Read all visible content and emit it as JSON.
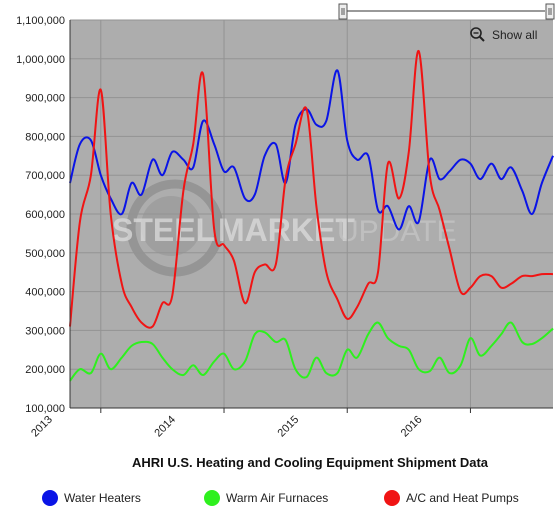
{
  "controls": {
    "show_all_label": "Show all"
  },
  "watermark": {
    "word1": "STEEL",
    "word2": "MARKET",
    "word3": "UPDATE"
  },
  "chart_data": {
    "type": "line",
    "title": "AHRI U.S. Heating and Cooling Equipment Shipment Data",
    "xlabel": "",
    "ylabel": "",
    "ylim": [
      100000,
      1100000
    ],
    "yticks": [
      100000,
      200000,
      300000,
      400000,
      500000,
      600000,
      700000,
      800000,
      900000,
      1000000,
      1100000
    ],
    "ytick_labels": [
      "100,000",
      "200,000",
      "300,000",
      "400,000",
      "500,000",
      "600,000",
      "700,000",
      "800,000",
      "900,000",
      "1,000,000",
      "1,100,000"
    ],
    "xlim": [
      2012.75,
      2016.67
    ],
    "xticks": [
      2013,
      2014,
      2015,
      2016
    ],
    "xtick_labels": [
      "2013",
      "2014",
      "2015",
      "2016"
    ],
    "grid": true,
    "legend_position": "bottom",
    "background": "#adadad",
    "series": [
      {
        "name": "Water Heaters",
        "color": "#0a14e6",
        "x": [
          2012.75,
          2012.83,
          2012.92,
          2013.0,
          2013.08,
          2013.17,
          2013.25,
          2013.33,
          2013.42,
          2013.5,
          2013.58,
          2013.67,
          2013.75,
          2013.83,
          2013.92,
          2014.0,
          2014.08,
          2014.17,
          2014.25,
          2014.33,
          2014.42,
          2014.5,
          2014.58,
          2014.67,
          2014.75,
          2014.83,
          2014.92,
          2015.0,
          2015.08,
          2015.17,
          2015.25,
          2015.33,
          2015.42,
          2015.5,
          2015.58,
          2015.67,
          2015.75,
          2015.83,
          2015.92,
          2016.0,
          2016.08,
          2016.17,
          2016.25,
          2016.33,
          2016.42,
          2016.5,
          2016.58,
          2016.67
        ],
        "values": [
          680000,
          780000,
          790000,
          700000,
          640000,
          600000,
          680000,
          650000,
          740000,
          700000,
          760000,
          740000,
          720000,
          840000,
          780000,
          710000,
          720000,
          640000,
          650000,
          750000,
          780000,
          680000,
          830000,
          870000,
          830000,
          840000,
          970000,
          790000,
          740000,
          750000,
          610000,
          620000,
          560000,
          620000,
          580000,
          740000,
          690000,
          710000,
          740000,
          730000,
          690000,
          730000,
          690000,
          720000,
          660000,
          600000,
          680000,
          750000
        ]
      },
      {
        "name": "Warm Air Furnaces",
        "color": "#2ef01e",
        "x": [
          2012.75,
          2012.83,
          2012.92,
          2013.0,
          2013.08,
          2013.17,
          2013.25,
          2013.33,
          2013.42,
          2013.5,
          2013.58,
          2013.67,
          2013.75,
          2013.83,
          2013.92,
          2014.0,
          2014.08,
          2014.17,
          2014.25,
          2014.33,
          2014.42,
          2014.5,
          2014.58,
          2014.67,
          2014.75,
          2014.83,
          2014.92,
          2015.0,
          2015.08,
          2015.17,
          2015.25,
          2015.33,
          2015.42,
          2015.5,
          2015.58,
          2015.67,
          2015.75,
          2015.83,
          2015.92,
          2016.0,
          2016.08,
          2016.17,
          2016.25,
          2016.33,
          2016.42,
          2016.5,
          2016.58,
          2016.67
        ],
        "values": [
          170000,
          200000,
          190000,
          240000,
          200000,
          230000,
          260000,
          270000,
          265000,
          230000,
          200000,
          185000,
          210000,
          185000,
          220000,
          240000,
          200000,
          220000,
          290000,
          295000,
          270000,
          275000,
          200000,
          180000,
          230000,
          190000,
          190000,
          250000,
          230000,
          290000,
          320000,
          280000,
          260000,
          250000,
          200000,
          195000,
          230000,
          190000,
          210000,
          280000,
          235000,
          260000,
          290000,
          320000,
          270000,
          265000,
          280000,
          305000
        ]
      },
      {
        "name": "A/C and Heat Pumps",
        "color": "#f01414",
        "x": [
          2012.75,
          2012.83,
          2012.92,
          2013.0,
          2013.08,
          2013.17,
          2013.25,
          2013.33,
          2013.42,
          2013.5,
          2013.58,
          2013.67,
          2013.75,
          2013.83,
          2013.92,
          2014.0,
          2014.08,
          2014.17,
          2014.25,
          2014.33,
          2014.42,
          2014.5,
          2014.58,
          2014.67,
          2014.75,
          2014.83,
          2014.92,
          2015.0,
          2015.08,
          2015.17,
          2015.25,
          2015.33,
          2015.42,
          2015.5,
          2015.58,
          2015.67,
          2015.75,
          2015.83,
          2015.92,
          2016.0,
          2016.08,
          2016.17,
          2016.25,
          2016.33,
          2016.42,
          2016.5,
          2016.58,
          2016.67
        ],
        "values": [
          310000,
          580000,
          700000,
          920000,
          600000,
          420000,
          360000,
          320000,
          310000,
          370000,
          390000,
          660000,
          780000,
          960000,
          560000,
          520000,
          480000,
          370000,
          450000,
          470000,
          470000,
          690000,
          780000,
          870000,
          620000,
          450000,
          380000,
          330000,
          360000,
          420000,
          450000,
          730000,
          640000,
          760000,
          1020000,
          700000,
          610000,
          510000,
          400000,
          410000,
          440000,
          440000,
          410000,
          420000,
          440000,
          440000,
          445000,
          445000
        ]
      }
    ]
  }
}
